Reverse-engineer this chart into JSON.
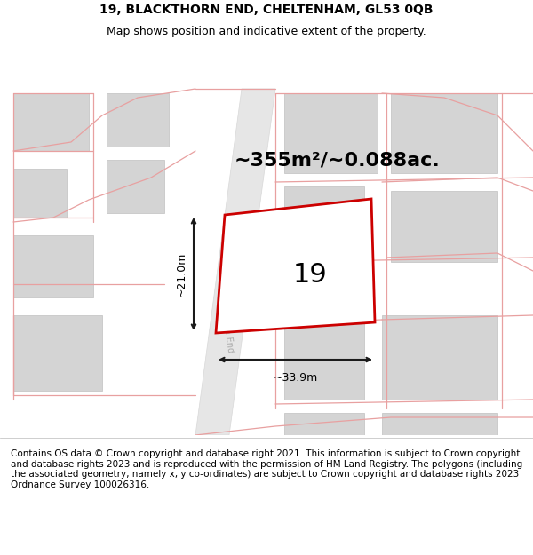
{
  "title_line1": "19, BLACKTHORN END, CHELTENHAM, GL53 0QB",
  "title_line2": "Map shows position and indicative extent of the property.",
  "footer_text": "Contains OS data © Crown copyright and database right 2021. This information is subject to Crown copyright and database rights 2023 and is reproduced with the permission of HM Land Registry. The polygons (including the associated geometry, namely x, y co-ordinates) are subject to Crown copyright and database rights 2023 Ordnance Survey 100026316.",
  "area_label": "~355m²/~0.088ac.",
  "width_label": "~33.9m",
  "height_label": "~21.0m",
  "plot_number": "19",
  "map_bg": "#f0f0f0",
  "building_color": "#d4d4d4",
  "building_edge": "#c0c0c0",
  "road_band_color": "#e6e6e6",
  "plot_edge_color": "#cc0000",
  "plot_fill_color": "#ffffff",
  "dim_color": "#1a1a1a",
  "red_line_color": "#e8a0a0",
  "text_color": "#000000",
  "road_label_color": "#aaaaaa",
  "title_fontsize": 10,
  "subtitle_fontsize": 9,
  "area_fontsize": 16,
  "plot_num_fontsize": 22,
  "dim_fontsize": 9,
  "footer_fontsize": 7.5
}
